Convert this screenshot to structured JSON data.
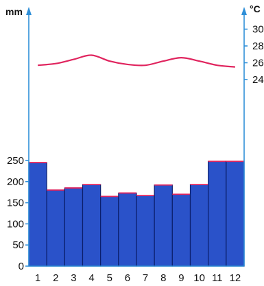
{
  "chart_data": {
    "type": "bar",
    "categories": [
      "1",
      "2",
      "3",
      "4",
      "5",
      "6",
      "7",
      "8",
      "9",
      "10",
      "11",
      "12"
    ],
    "series": [
      {
        "kind": "bar",
        "axis": "left",
        "values": [
          245,
          180,
          185,
          193,
          165,
          173,
          167,
          192,
          170,
          193,
          248,
          248
        ]
      },
      {
        "kind": "line",
        "axis": "right",
        "values": [
          25.7,
          25.9,
          26.4,
          26.9,
          26.2,
          25.8,
          25.7,
          26.2,
          26.6,
          26.2,
          25.7,
          25.5
        ]
      }
    ],
    "left_axis": {
      "unit": "mm",
      "ylim": [
        0,
        280
      ],
      "ticks": [
        0,
        50,
        100,
        150,
        200,
        250
      ]
    },
    "right_axis": {
      "unit": "°C",
      "ticks": [
        24,
        26,
        28,
        30
      ]
    },
    "grid": false,
    "legend": "none",
    "colors": {
      "bar_fill": "#2a52c9",
      "bar_edge": "#0b1e6b",
      "bar_top": "#e0245e",
      "line": "#e0245e",
      "axis": "#2f8fd8"
    }
  }
}
